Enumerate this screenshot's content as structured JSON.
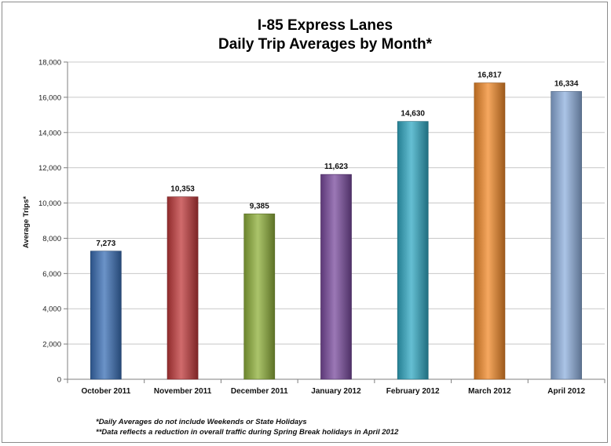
{
  "chart_data": {
    "type": "bar",
    "title": [
      "I-85 Express Lanes",
      "Daily Trip Averages by Month*"
    ],
    "ylabel": "Average Trips*",
    "xlabel": "",
    "categories": [
      "October 2011",
      "November 2011",
      "December 2011",
      "January 2012",
      "February 2012",
      "March 2012",
      "April 2012"
    ],
    "values": [
      7273,
      10353,
      9385,
      11623,
      14630,
      16817,
      16334
    ],
    "data_labels": [
      "7,273",
      "10,353",
      "9,385",
      "11,623",
      "14,630",
      "16,817",
      "16,334"
    ],
    "ylim": [
      0,
      18000
    ],
    "yticks": [
      0,
      2000,
      4000,
      6000,
      8000,
      10000,
      12000,
      14000,
      16000,
      18000
    ],
    "ytick_labels": [
      "0",
      "2,000",
      "4,000",
      "6,000",
      "8,000",
      "10,000",
      "12,000",
      "14,000",
      "16,000",
      "18,000"
    ],
    "grid": true,
    "legend": "none",
    "bar_colors": [
      "#3a6fb5",
      "#c0393b",
      "#8fb03a",
      "#7a4b9e",
      "#31a9c4",
      "#f18a2a",
      "#8fb0de"
    ],
    "footnotes": [
      "*Daily Averages do not include Weekends or State Holidays",
      "**Data reflects a reduction in overall traffic during Spring Break holidays in April 2012"
    ]
  }
}
